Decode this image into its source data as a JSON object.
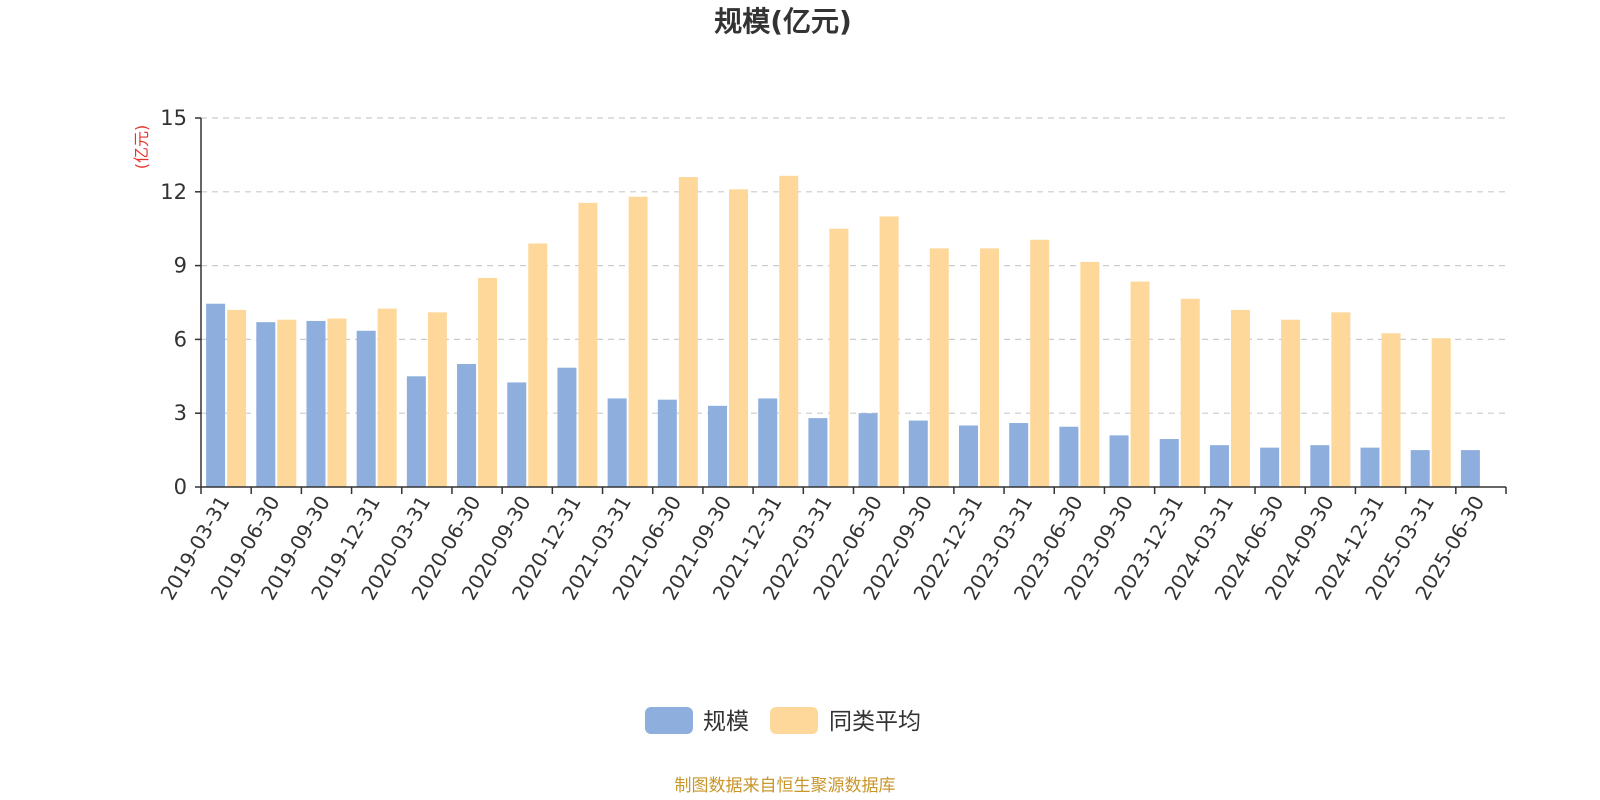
{
  "chart_data": {
    "type": "bar",
    "title": "规模(亿元)",
    "ylabel": "(亿元)",
    "ylim": [
      0,
      15
    ],
    "yticks": [
      0,
      3,
      6,
      9,
      12,
      15
    ],
    "grid": true,
    "legend_position": "bottom-center",
    "categories": [
      "2019-03-31",
      "2019-06-30",
      "2019-09-30",
      "2019-12-31",
      "2020-03-31",
      "2020-06-30",
      "2020-09-30",
      "2020-12-31",
      "2021-03-31",
      "2021-06-30",
      "2021-09-30",
      "2021-12-31",
      "2022-03-31",
      "2022-06-30",
      "2022-09-30",
      "2022-12-31",
      "2023-03-31",
      "2023-06-30",
      "2023-09-30",
      "2023-12-31",
      "2024-03-31",
      "2024-06-30",
      "2024-09-30",
      "2024-12-31",
      "2025-03-31",
      "2025-06-30"
    ],
    "series": [
      {
        "name": "规模",
        "color": "#8eaedd",
        "values": [
          7.45,
          6.7,
          6.75,
          6.35,
          4.5,
          5.0,
          4.25,
          4.85,
          3.6,
          3.55,
          3.3,
          3.6,
          2.8,
          3.0,
          2.7,
          2.5,
          2.6,
          2.45,
          2.1,
          1.95,
          1.7,
          1.6,
          1.7,
          1.6,
          1.5,
          1.5
        ]
      },
      {
        "name": "同类平均",
        "color": "#fdd89a",
        "values": [
          7.2,
          6.8,
          6.85,
          7.25,
          7.1,
          8.5,
          9.9,
          11.55,
          11.8,
          12.6,
          12.1,
          12.65,
          10.5,
          11.0,
          9.7,
          9.7,
          10.05,
          9.15,
          8.35,
          7.65,
          7.2,
          6.8,
          7.1,
          6.25,
          6.05,
          null
        ]
      }
    ]
  },
  "colors": {
    "axis": "#333333",
    "grid": "#cccccc",
    "unit_label": "#e8342c",
    "source_text": "#c9962c"
  },
  "source_note": "制图数据来自恒生聚源数据库"
}
